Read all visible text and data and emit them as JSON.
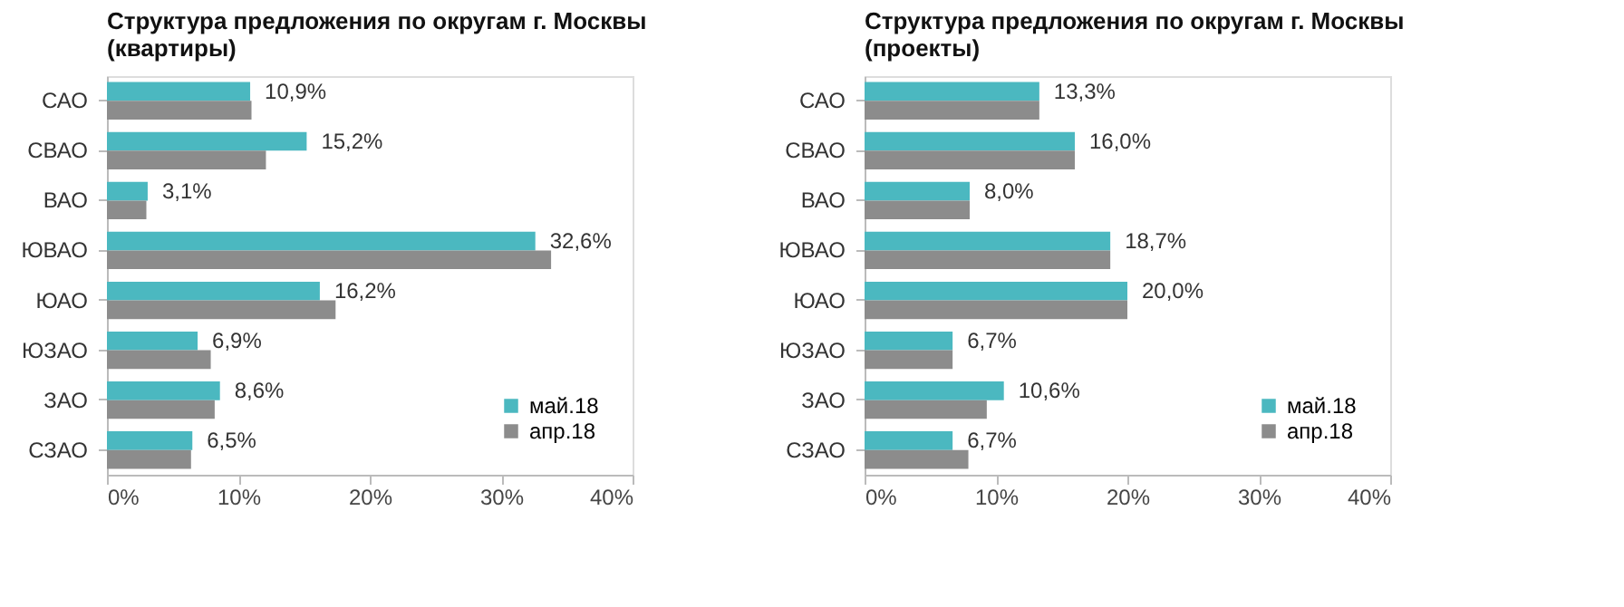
{
  "chart_data": [
    {
      "type": "bar",
      "orientation": "horizontal",
      "title": "Структура предложения по округам г. Москвы (квартиры)",
      "categories": [
        "САО",
        "СВАО",
        "ВАО",
        "ЮВАО",
        "ЮАО",
        "ЮЗАО",
        "ЗАО",
        "СЗАО"
      ],
      "series": [
        {
          "name": "май.18",
          "color": "#4bb8c0",
          "values": [
            10.9,
            15.2,
            3.1,
            32.6,
            16.2,
            6.9,
            8.6,
            6.5
          ],
          "value_labels": [
            "10,9%",
            "15,2%",
            "3,1%",
            "32,6%",
            "16,2%",
            "6,9%",
            "8,6%",
            "6,5%"
          ]
        },
        {
          "name": "апр.18",
          "color": "#8c8c8c",
          "values": [
            11.0,
            12.1,
            3.0,
            33.8,
            17.4,
            7.9,
            8.2,
            6.4
          ]
        }
      ],
      "xlim": [
        0,
        40
      ],
      "xticks": [
        {
          "value": 0,
          "label": "0%"
        },
        {
          "value": 10,
          "label": "10%"
        },
        {
          "value": 20,
          "label": "20%"
        },
        {
          "value": 30,
          "label": "30%"
        },
        {
          "value": 40,
          "label": "40%"
        }
      ],
      "grid": false,
      "legend": "bottom right"
    },
    {
      "type": "bar",
      "orientation": "horizontal",
      "title": "Структура предложения по округам г. Москвы (проекты)",
      "categories": [
        "САО",
        "СВАО",
        "ВАО",
        "ЮВАО",
        "ЮАО",
        "ЮЗАО",
        "ЗАО",
        "СЗАО"
      ],
      "series": [
        {
          "name": "май.18",
          "color": "#4bb8c0",
          "values": [
            13.3,
            16.0,
            8.0,
            18.7,
            20.0,
            6.7,
            10.6,
            6.7
          ],
          "value_labels": [
            "13,3%",
            "16,0%",
            "8,0%",
            "18,7%",
            "20,0%",
            "6,7%",
            "10,6%",
            "6,7%"
          ]
        },
        {
          "name": "апр.18",
          "color": "#8c8c8c",
          "values": [
            13.3,
            16.0,
            8.0,
            18.7,
            20.0,
            6.7,
            9.3,
            7.9
          ]
        }
      ],
      "xlim": [
        0,
        40
      ],
      "xticks": [
        {
          "value": 0,
          "label": "0%"
        },
        {
          "value": 10,
          "label": "10%"
        },
        {
          "value": 20,
          "label": "20%"
        },
        {
          "value": 30,
          "label": "30%"
        },
        {
          "value": 40,
          "label": "40%"
        }
      ],
      "grid": false,
      "legend": "bottom right"
    }
  ]
}
